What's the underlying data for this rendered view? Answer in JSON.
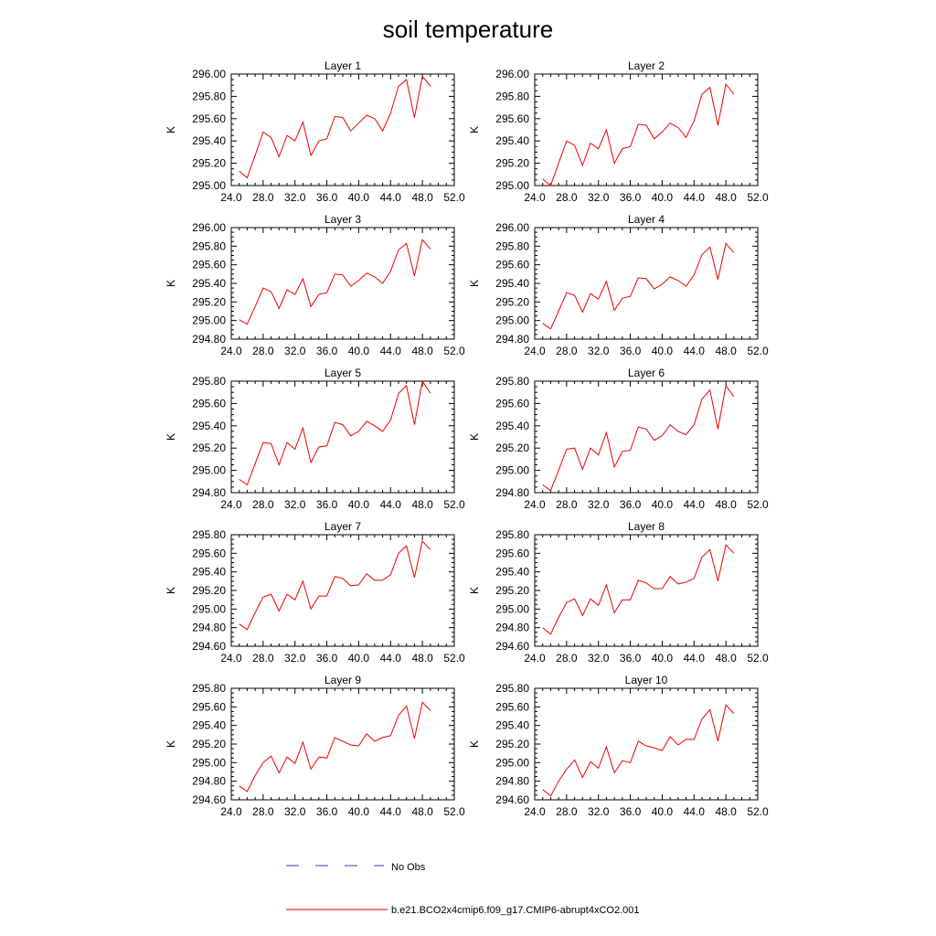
{
  "chart_data": {
    "type": "line",
    "title": "soil temperature",
    "panels": [
      {
        "title": "Layer 1",
        "ylabel": "K",
        "xlim": [
          24,
          52
        ],
        "ylim": [
          295.0,
          296.0
        ],
        "xticks": [
          "24.0",
          "28.0",
          "32.0",
          "36.0",
          "40.0",
          "44.0",
          "48.0",
          "52.0"
        ],
        "yticks": [
          "295.00",
          "295.20",
          "295.40",
          "295.60",
          "295.80",
          "296.00"
        ],
        "x": [
          25,
          26,
          27,
          28,
          29,
          30,
          31,
          32,
          33,
          34,
          35,
          36,
          37,
          38,
          39,
          40,
          41,
          42,
          43,
          44,
          45,
          46,
          47,
          48,
          49
        ],
        "values": [
          295.13,
          295.07,
          295.27,
          295.48,
          295.43,
          295.26,
          295.45,
          295.4,
          295.57,
          295.27,
          295.4,
          295.42,
          295.62,
          295.61,
          295.49,
          295.56,
          295.63,
          295.6,
          295.49,
          295.65,
          295.89,
          295.95,
          295.61,
          295.98,
          295.89
        ]
      },
      {
        "title": "Layer 2",
        "ylabel": "K",
        "xlim": [
          24,
          52
        ],
        "ylim": [
          295.0,
          296.0
        ],
        "xticks": [
          "24.0",
          "28.0",
          "32.0",
          "36.0",
          "40.0",
          "44.0",
          "48.0",
          "52.0"
        ],
        "yticks": [
          "295.00",
          "295.20",
          "295.40",
          "295.60",
          "295.80",
          "296.00"
        ],
        "x": [
          25,
          26,
          27,
          28,
          29,
          30,
          31,
          32,
          33,
          34,
          35,
          36,
          37,
          38,
          39,
          40,
          41,
          42,
          43,
          44,
          45,
          46,
          47,
          48,
          49
        ],
        "values": [
          295.06,
          295.0,
          295.2,
          295.4,
          295.36,
          295.18,
          295.38,
          295.33,
          295.5,
          295.2,
          295.33,
          295.35,
          295.55,
          295.54,
          295.42,
          295.48,
          295.56,
          295.52,
          295.43,
          295.58,
          295.82,
          295.88,
          295.54,
          295.91,
          295.82
        ]
      },
      {
        "title": "Layer 3",
        "ylabel": "K",
        "xlim": [
          24,
          52
        ],
        "ylim": [
          294.8,
          296.0
        ],
        "xticks": [
          "24.0",
          "28.0",
          "32.0",
          "36.0",
          "40.0",
          "44.0",
          "48.0",
          "52.0"
        ],
        "yticks": [
          "294.80",
          "295.00",
          "295.20",
          "295.40",
          "295.60",
          "295.80",
          "296.00"
        ],
        "x": [
          25,
          26,
          27,
          28,
          29,
          30,
          31,
          32,
          33,
          34,
          35,
          36,
          37,
          38,
          39,
          40,
          41,
          42,
          43,
          44,
          45,
          46,
          47,
          48,
          49
        ],
        "values": [
          295.01,
          294.96,
          295.15,
          295.35,
          295.31,
          295.13,
          295.33,
          295.28,
          295.45,
          295.15,
          295.28,
          295.3,
          295.5,
          295.49,
          295.37,
          295.43,
          295.51,
          295.47,
          295.4,
          295.53,
          295.76,
          295.83,
          295.48,
          295.87,
          295.77
        ]
      },
      {
        "title": "Layer 4",
        "ylabel": "K",
        "xlim": [
          24,
          52
        ],
        "ylim": [
          294.8,
          296.0
        ],
        "xticks": [
          "24.0",
          "28.0",
          "32.0",
          "36.0",
          "40.0",
          "44.0",
          "48.0",
          "52.0"
        ],
        "yticks": [
          "294.80",
          "295.00",
          "295.20",
          "295.40",
          "295.60",
          "295.80",
          "296.00"
        ],
        "x": [
          25,
          26,
          27,
          28,
          29,
          30,
          31,
          32,
          33,
          34,
          35,
          36,
          37,
          38,
          39,
          40,
          41,
          42,
          43,
          44,
          45,
          46,
          47,
          48,
          49
        ],
        "values": [
          294.97,
          294.91,
          295.1,
          295.3,
          295.27,
          295.09,
          295.29,
          295.23,
          295.42,
          295.11,
          295.24,
          295.26,
          295.46,
          295.45,
          295.34,
          295.39,
          295.47,
          295.43,
          295.37,
          295.49,
          295.71,
          295.79,
          295.44,
          295.83,
          295.73
        ]
      },
      {
        "title": "Layer 5",
        "ylabel": "K",
        "xlim": [
          24,
          52
        ],
        "ylim": [
          294.8,
          295.8
        ],
        "xticks": [
          "24.0",
          "28.0",
          "32.0",
          "36.0",
          "40.0",
          "44.0",
          "48.0",
          "52.0"
        ],
        "yticks": [
          "294.80",
          "295.00",
          "295.20",
          "295.40",
          "295.60",
          "295.80"
        ],
        "x": [
          25,
          26,
          27,
          28,
          29,
          30,
          31,
          32,
          33,
          34,
          35,
          36,
          37,
          38,
          39,
          40,
          41,
          42,
          43,
          44,
          45,
          46,
          47,
          48,
          49
        ],
        "values": [
          294.92,
          294.87,
          295.06,
          295.25,
          295.24,
          295.05,
          295.25,
          295.19,
          295.38,
          295.07,
          295.21,
          295.22,
          295.43,
          295.41,
          295.31,
          295.35,
          295.44,
          295.4,
          295.35,
          295.45,
          295.69,
          295.76,
          295.41,
          295.8,
          295.69
        ]
      },
      {
        "title": "Layer 6",
        "ylabel": "K",
        "xlim": [
          24,
          52
        ],
        "ylim": [
          294.8,
          295.8
        ],
        "xticks": [
          "24.0",
          "28.0",
          "32.0",
          "36.0",
          "40.0",
          "44.0",
          "48.0",
          "52.0"
        ],
        "yticks": [
          "294.80",
          "295.00",
          "295.20",
          "295.40",
          "295.60",
          "295.80"
        ],
        "x": [
          25,
          26,
          27,
          28,
          29,
          30,
          31,
          32,
          33,
          34,
          35,
          36,
          37,
          38,
          39,
          40,
          41,
          42,
          43,
          44,
          45,
          46,
          47,
          48,
          49
        ],
        "values": [
          294.87,
          294.82,
          295.0,
          295.19,
          295.2,
          295.01,
          295.2,
          295.14,
          295.34,
          295.03,
          295.17,
          295.18,
          295.39,
          295.37,
          295.27,
          295.31,
          295.41,
          295.35,
          295.32,
          295.41,
          295.64,
          295.72,
          295.37,
          295.76,
          295.66
        ]
      },
      {
        "title": "Layer 7",
        "ylabel": "K",
        "xlim": [
          24,
          52
        ],
        "ylim": [
          294.6,
          295.8
        ],
        "xticks": [
          "24.0",
          "28.0",
          "32.0",
          "36.0",
          "40.0",
          "44.0",
          "48.0",
          "52.0"
        ],
        "yticks": [
          "294.60",
          "294.80",
          "295.00",
          "295.20",
          "295.40",
          "295.60",
          "295.80"
        ],
        "x": [
          25,
          26,
          27,
          28,
          29,
          30,
          31,
          32,
          33,
          34,
          35,
          36,
          37,
          38,
          39,
          40,
          41,
          42,
          43,
          44,
          45,
          46,
          47,
          48,
          49
        ],
        "values": [
          294.84,
          294.78,
          294.96,
          295.13,
          295.16,
          294.98,
          295.16,
          295.1,
          295.3,
          295.0,
          295.14,
          295.14,
          295.35,
          295.33,
          295.25,
          295.26,
          295.38,
          295.31,
          295.31,
          295.37,
          295.6,
          295.68,
          295.34,
          295.73,
          295.64
        ]
      },
      {
        "title": "Layer 8",
        "ylabel": "K",
        "xlim": [
          24,
          52
        ],
        "ylim": [
          294.6,
          295.8
        ],
        "xticks": [
          "24.0",
          "28.0",
          "32.0",
          "36.0",
          "40.0",
          "44.0",
          "48.0",
          "52.0"
        ],
        "yticks": [
          "294.60",
          "294.80",
          "295.00",
          "295.20",
          "295.40",
          "295.60",
          "295.80"
        ],
        "x": [
          25,
          26,
          27,
          28,
          29,
          30,
          31,
          32,
          33,
          34,
          35,
          36,
          37,
          38,
          39,
          40,
          41,
          42,
          43,
          44,
          45,
          46,
          47,
          48,
          49
        ],
        "values": [
          294.8,
          294.73,
          294.91,
          295.07,
          295.11,
          294.93,
          295.11,
          295.04,
          295.26,
          294.96,
          295.1,
          295.1,
          295.31,
          295.28,
          295.22,
          295.22,
          295.35,
          295.27,
          295.29,
          295.33,
          295.56,
          295.64,
          295.3,
          295.69,
          295.6
        ]
      },
      {
        "title": "Layer 9",
        "ylabel": "K",
        "xlim": [
          24,
          52
        ],
        "ylim": [
          294.6,
          295.8
        ],
        "xticks": [
          "24.0",
          "28.0",
          "32.0",
          "36.0",
          "40.0",
          "44.0",
          "48.0",
          "52.0"
        ],
        "yticks": [
          "294.60",
          "294.80",
          "295.00",
          "295.20",
          "295.40",
          "295.60",
          "295.80"
        ],
        "x": [
          25,
          26,
          27,
          28,
          29,
          30,
          31,
          32,
          33,
          34,
          35,
          36,
          37,
          38,
          39,
          40,
          41,
          42,
          43,
          44,
          45,
          46,
          47,
          48,
          49
        ],
        "values": [
          294.75,
          294.69,
          294.86,
          295.0,
          295.07,
          294.89,
          295.06,
          294.99,
          295.22,
          294.93,
          295.06,
          295.05,
          295.27,
          295.23,
          295.19,
          295.18,
          295.31,
          295.23,
          295.27,
          295.29,
          295.51,
          295.61,
          295.26,
          295.65,
          295.56
        ]
      },
      {
        "title": "Layer 10",
        "ylabel": "K",
        "xlim": [
          24,
          52
        ],
        "ylim": [
          294.6,
          295.8
        ],
        "xticks": [
          "24.0",
          "28.0",
          "32.0",
          "36.0",
          "40.0",
          "44.0",
          "48.0",
          "52.0"
        ],
        "yticks": [
          "294.60",
          "294.80",
          "295.00",
          "295.20",
          "295.40",
          "295.60",
          "295.80"
        ],
        "x": [
          25,
          26,
          27,
          28,
          29,
          30,
          31,
          32,
          33,
          34,
          35,
          36,
          37,
          38,
          39,
          40,
          41,
          42,
          43,
          44,
          45,
          46,
          47,
          48,
          49
        ],
        "values": [
          294.71,
          294.64,
          294.8,
          294.93,
          295.03,
          294.84,
          295.01,
          294.94,
          295.17,
          294.89,
          295.02,
          295.0,
          295.23,
          295.18,
          295.16,
          295.13,
          295.28,
          295.19,
          295.25,
          295.25,
          295.47,
          295.57,
          295.23,
          295.62,
          295.53
        ]
      }
    ],
    "legend": [
      {
        "label": "No Obs",
        "color": "#3a3ad0",
        "style": "dashed"
      },
      {
        "label": "b.e21.BCO2x4cmip6.f09_g17.CMIP6-abrupt4xCO2.001",
        "color": "#ee0000",
        "style": "solid"
      }
    ],
    "line_color": "#ee0000"
  }
}
